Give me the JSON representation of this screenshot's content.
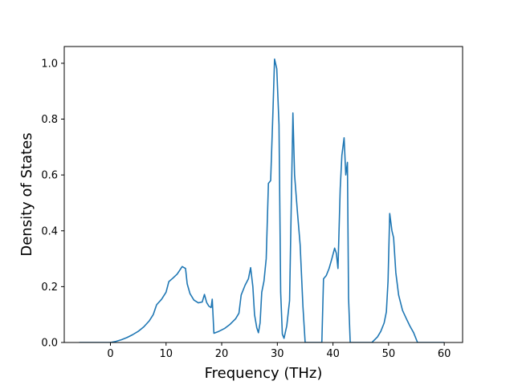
{
  "chart_data": {
    "type": "line",
    "title": "",
    "xlabel": "Frequency (THz)",
    "ylabel": "Density of States",
    "xlim": [
      -8.3,
      63.3
    ],
    "ylim": [
      0.0,
      1.06
    ],
    "xticks": [
      0,
      10,
      20,
      30,
      40,
      50,
      60
    ],
    "yticks": [
      0.0,
      0.2,
      0.4,
      0.6,
      0.8,
      1.0
    ],
    "grid": false,
    "legend": "none",
    "line_color": "#1f77b4",
    "series": [
      {
        "x": [
          -5.6,
          -4,
          -2,
          0,
          1,
          2,
          3,
          4,
          5,
          6,
          7,
          7.7,
          8.3,
          9.2,
          10,
          10.5,
          11.2,
          12,
          12.9,
          13.5,
          13.8,
          14.3,
          15,
          15.8,
          16.5,
          16.9,
          17.3,
          17.7,
          18.1,
          18.3,
          18.6,
          19.5,
          20.5,
          21.5,
          22.5,
          23.1,
          23.5,
          24.2,
          24.8,
          25.2,
          25.6,
          25.9,
          26.3,
          26.6,
          26.9,
          27.2,
          27.6,
          28,
          28.4,
          28.8,
          29.2,
          29.5,
          29.9,
          30.3,
          30.6,
          30.9,
          31.2,
          31.7,
          32.2,
          32.6,
          32.8,
          33.1,
          33.6,
          34.1,
          34.6,
          35,
          36,
          37,
          38,
          38.3,
          38.8,
          39.3,
          39.8,
          40.3,
          40.6,
          40.9,
          41.3,
          41.6,
          42,
          42.3,
          42.6,
          42.8,
          43.1,
          44,
          45,
          46,
          47,
          48,
          48.6,
          49.2,
          49.6,
          49.9,
          50.2,
          50.6,
          50.9,
          51.3,
          51.8,
          52.5,
          53.2,
          53.8,
          54.5,
          55.2,
          56,
          57,
          58,
          59,
          60
        ],
        "values": [
          0.0,
          0.0,
          0.0,
          0.0,
          0.004,
          0.01,
          0.018,
          0.028,
          0.04,
          0.056,
          0.078,
          0.1,
          0.135,
          0.155,
          0.18,
          0.218,
          0.23,
          0.245,
          0.272,
          0.265,
          0.21,
          0.175,
          0.152,
          0.142,
          0.145,
          0.172,
          0.143,
          0.13,
          0.125,
          0.155,
          0.033,
          0.04,
          0.05,
          0.065,
          0.085,
          0.105,
          0.17,
          0.205,
          0.228,
          0.268,
          0.2,
          0.1,
          0.053,
          0.035,
          0.07,
          0.18,
          0.22,
          0.3,
          0.57,
          0.58,
          0.82,
          1.015,
          0.98,
          0.78,
          0.18,
          0.03,
          0.015,
          0.06,
          0.15,
          0.6,
          0.822,
          0.6,
          0.47,
          0.35,
          0.13,
          0.0,
          0.0,
          0.0,
          0.0,
          0.228,
          0.24,
          0.265,
          0.3,
          0.338,
          0.32,
          0.265,
          0.55,
          0.67,
          0.733,
          0.6,
          0.645,
          0.16,
          0.0,
          0.0,
          0.0,
          0.0,
          0.0,
          0.02,
          0.04,
          0.07,
          0.11,
          0.22,
          0.462,
          0.4,
          0.375,
          0.25,
          0.17,
          0.115,
          0.085,
          0.06,
          0.035,
          0.0,
          0.0,
          0.0,
          0.0,
          0.0,
          0.0
        ]
      }
    ]
  }
}
